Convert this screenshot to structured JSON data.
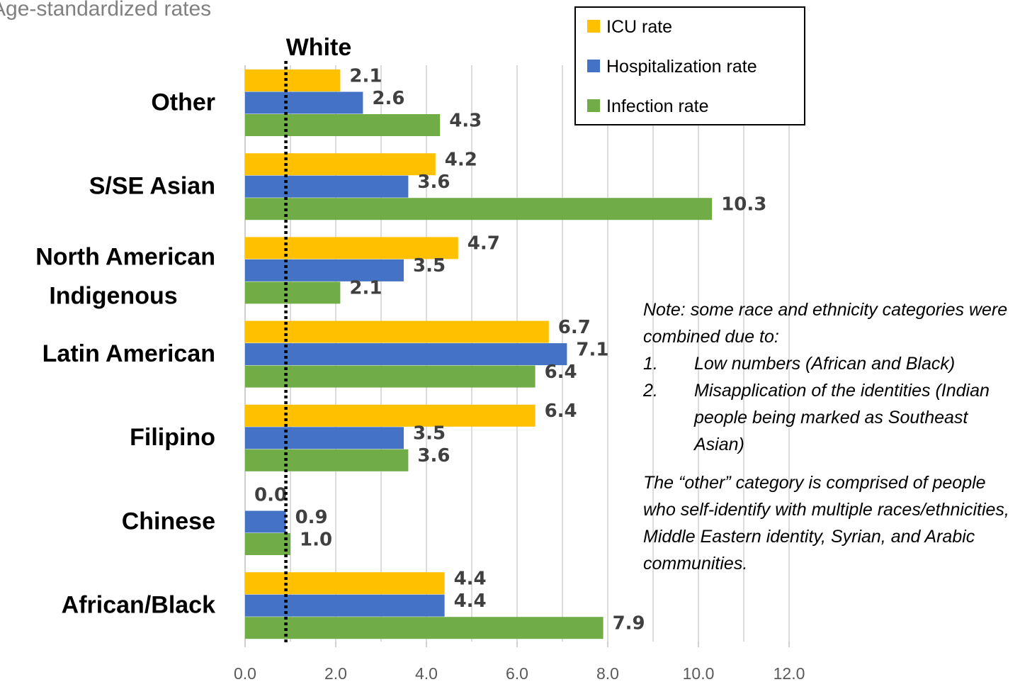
{
  "chart_data": {
    "type": "bar",
    "orientation": "horizontal",
    "title": "Age-standardized rates",
    "categories": [
      "Other",
      "S/SE Asian",
      "North American Indigenous",
      "Latin American",
      "Filipino",
      "Chinese",
      "African/Black"
    ],
    "series": [
      {
        "name": "ICU rate",
        "color": "#FFC000",
        "values": [
          2.1,
          4.2,
          4.7,
          6.7,
          6.4,
          0.0,
          4.4
        ]
      },
      {
        "name": "Hospitalization rate",
        "color": "#4472C4",
        "values": [
          2.6,
          3.6,
          3.5,
          7.1,
          3.5,
          0.9,
          4.4
        ]
      },
      {
        "name": "Infection rate",
        "color": "#70AD47",
        "values": [
          4.3,
          10.3,
          2.1,
          6.4,
          3.6,
          1.0,
          7.9
        ]
      }
    ],
    "xlim": [
      0,
      12
    ],
    "x_ticks": [
      "0.0",
      "2.0",
      "4.0",
      "6.0",
      "8.0",
      "10.0",
      "12.0"
    ],
    "reference_line": {
      "label": "White",
      "value": 0.9
    },
    "grid": true,
    "legend_position": "top-right"
  },
  "note": {
    "intro": "Note: some race and ethnicity categories were combined due to:",
    "items": [
      {
        "num": "1.",
        "text": "Low numbers (African and Black)"
      },
      {
        "num": "2.",
        "text": "Misapplication of the identities (Indian people being marked as Southeast Asian)"
      }
    ],
    "other": "The “other” category is comprised of people who self-identify with multiple races/ethnicities, Middle Eastern identity, Syrian, and Arabic communities."
  }
}
